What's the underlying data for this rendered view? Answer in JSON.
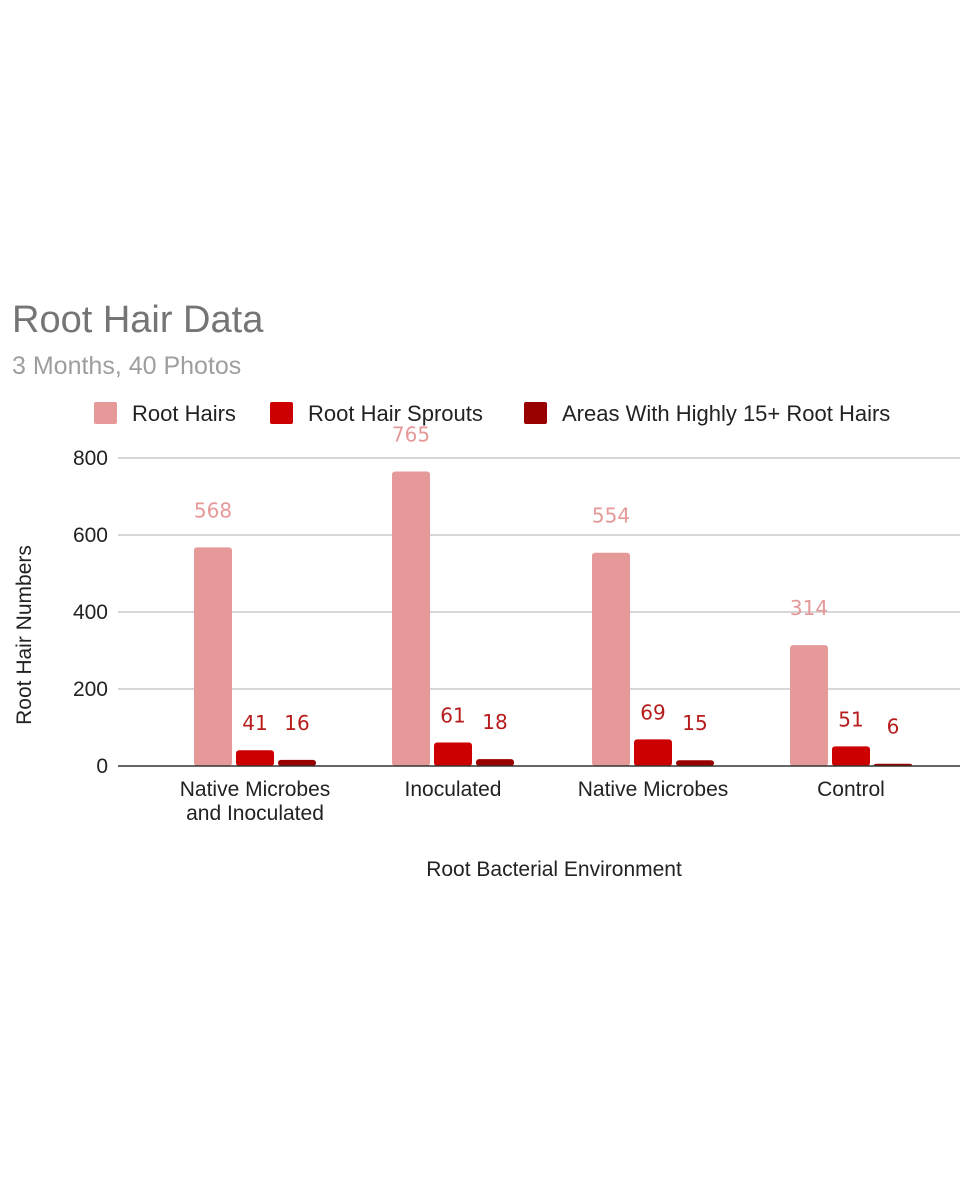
{
  "chart_data": {
    "type": "bar",
    "title": "Root Hair Data",
    "subtitle": "3 Months, 40 Photos",
    "xlabel": "Root Bacterial Environment",
    "ylabel": "Root Hair Numbers",
    "ylim": [
      0,
      800
    ],
    "yticks": [
      0,
      200,
      400,
      600,
      800
    ],
    "ytick_labels": [
      "0",
      "200",
      "400",
      "600",
      "800"
    ],
    "grid": true,
    "legend_position": "top",
    "categories": [
      [
        "Native Microbes",
        "and Inoculated"
      ],
      [
        "Inoculated"
      ],
      [
        "Native Microbes"
      ],
      [
        "Control"
      ]
    ],
    "series": [
      {
        "name": "Root Hairs",
        "color": "#e69999",
        "label_color": "#e69999",
        "values": [
          568,
          765,
          554,
          314
        ],
        "labels": [
          "568",
          "765",
          "554",
          "314"
        ]
      },
      {
        "name": "Root Hair Sprouts",
        "color": "#cc0000",
        "label_color": "#b71c1c",
        "values": [
          41,
          61,
          69,
          51
        ],
        "labels": [
          "41",
          "61",
          "69",
          "51"
        ]
      },
      {
        "name": "Areas With Highly 15+ Root Hairs",
        "color": "#990000",
        "label_color": "#b71c1c",
        "values": [
          16,
          18,
          15,
          6
        ],
        "labels": [
          "16",
          "18",
          "15",
          "6"
        ]
      }
    ]
  }
}
